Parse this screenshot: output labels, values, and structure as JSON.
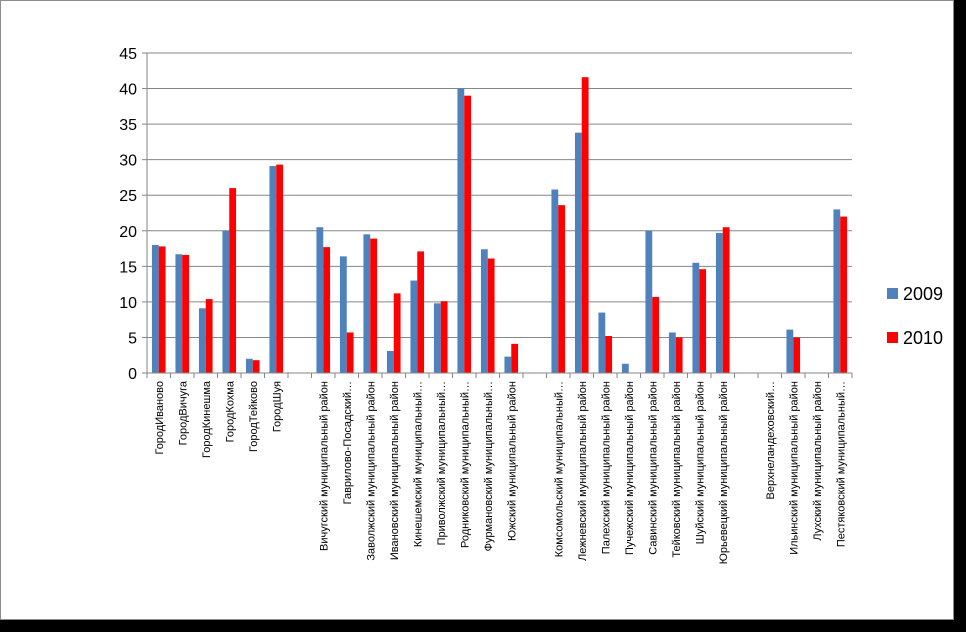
{
  "chart_data": {
    "type": "bar",
    "title": "",
    "xlabel": "",
    "ylabel": "",
    "ylim": [
      0,
      45
    ],
    "yticks": [
      0,
      5,
      10,
      15,
      20,
      25,
      30,
      35,
      40,
      45
    ],
    "grid": true,
    "legend_position": "right",
    "categories": [
      "ГородИваново",
      "ГородВичуга",
      "ГородКинешма",
      "ГородКохма",
      "ГородТейково",
      "ГородШуя",
      "",
      "Вичугский муниципальный район",
      "Гаврилово-Посадский…",
      "Заволжский муниципальный район",
      "Ивановский муниципальный район",
      "Кинешемский муниципальный…",
      "Приволжский муниципальный…",
      "Родниковский муниципальный…",
      "Фурмановский муниципальный…",
      "Южский муниципальный район",
      "",
      "Комсомольский муниципальный…",
      "Лежневский муниципальный район",
      "Палехский муниципальный район",
      "Пучежский муниципальный район",
      "Савинский муниципальный район",
      "Тейковский муниципальный район",
      "Шуйский муниципальный район",
      "Юрьевецкий муниципальный район",
      "",
      "Верхнеландеховский…",
      "Ильинский муниципальный район",
      "Лухский муниципальный район",
      "Пестяковский муниципальный…"
    ],
    "series": [
      {
        "name": "2009",
        "color": "#4f81bd",
        "values": [
          18.0,
          16.7,
          9.1,
          20.0,
          2.0,
          29.1,
          null,
          20.5,
          16.4,
          19.5,
          3.1,
          13.0,
          9.8,
          40.0,
          17.4,
          2.3,
          null,
          25.8,
          33.8,
          8.5,
          1.3,
          20.0,
          5.7,
          15.5,
          19.7,
          null,
          0,
          6.1,
          0,
          23.0
        ]
      },
      {
        "name": "2010",
        "color": "#ff0000",
        "values": [
          17.8,
          16.6,
          10.4,
          26.0,
          1.8,
          29.3,
          null,
          17.7,
          5.7,
          18.9,
          11.2,
          17.1,
          10.1,
          39.0,
          16.1,
          4.1,
          null,
          23.6,
          41.6,
          5.2,
          0,
          10.7,
          5.0,
          14.6,
          20.5,
          null,
          0,
          5.0,
          0,
          22.0
        ]
      }
    ]
  }
}
